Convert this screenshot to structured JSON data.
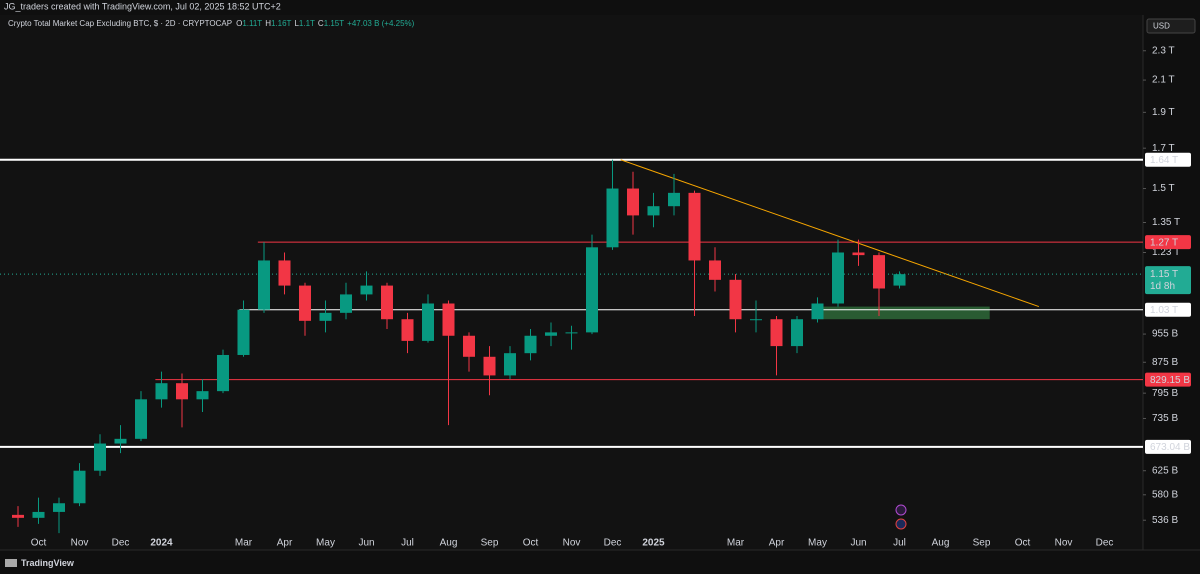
{
  "chart_data": {
    "type": "candlestick",
    "header": "JG_traders created with TradingView.com, Jul 02, 2025 18:52 UTC+2",
    "title": "Crypto Total Market Cap Excluding BTC, $ · 2D · CRYPTOCAP",
    "legend_ohlc": [
      {
        "key": "O",
        "text": "1.11T"
      },
      {
        "key": "H",
        "text": "1.16T"
      },
      {
        "key": "L",
        "text": "1.1T"
      },
      {
        "key": "C",
        "text": "1.15T"
      }
    ],
    "change": "+47.03 B (+4.25%)",
    "currency": "USD",
    "brand": "TradingView",
    "up_color": "#089981",
    "down_color": "#f23645",
    "log_scale": true,
    "categories": [
      null,
      "Oct",
      null,
      "Nov",
      null,
      "Dec",
      null,
      "2024",
      null,
      null,
      null,
      "Mar",
      null,
      "Apr",
      null,
      "May",
      null,
      "Jun",
      null,
      "Jul",
      null,
      "Aug",
      null,
      "Sep",
      null,
      "Oct",
      null,
      "Nov",
      null,
      "Dec",
      null,
      "2025",
      null,
      null,
      null,
      "Mar",
      null,
      "Apr",
      null,
      "May",
      null,
      "Jun",
      null,
      "Jul",
      null,
      "Aug",
      null,
      "Sep",
      null,
      "Oct",
      null,
      "Nov",
      null,
      "Dec"
    ],
    "open": [
      545,
      540,
      550,
      565,
      625,
      680,
      690,
      780,
      820,
      780,
      800,
      895,
      1030,
      1200,
      1110,
      995,
      1020,
      1080,
      1110,
      1000,
      935,
      1050,
      950,
      890,
      840,
      900,
      950,
      960,
      960,
      1250,
      1500,
      1380,
      1420,
      1480,
      1200,
      1130,
      1000,
      1000,
      920,
      1000,
      1050,
      1230,
      1220,
      1110,
      null,
      null,
      null,
      null,
      null,
      null,
      null,
      null,
      null,
      null
    ],
    "high": [
      560,
      575,
      575,
      640,
      700,
      720,
      800,
      850,
      845,
      830,
      910,
      1060,
      1270,
      1230,
      1120,
      1060,
      1120,
      1160,
      1120,
      1020,
      1080,
      1060,
      960,
      920,
      920,
      970,
      990,
      980,
      1300,
      1640,
      1580,
      1480,
      1570,
      1490,
      1250,
      1150,
      1060,
      1010,
      1010,
      1070,
      1280,
      1280,
      1230,
      1160,
      null,
      null,
      null,
      null,
      null,
      null,
      null,
      null,
      null,
      null
    ],
    "low": [
      525,
      530,
      515,
      560,
      615,
      660,
      685,
      760,
      715,
      750,
      795,
      890,
      1020,
      1080,
      950,
      960,
      1000,
      1060,
      970,
      900,
      930,
      720,
      850,
      790,
      830,
      880,
      920,
      910,
      955,
      1240,
      1300,
      1330,
      1380,
      1010,
      1090,
      960,
      960,
      840,
      900,
      990,
      1040,
      1180,
      1010,
      1100,
      null,
      null,
      null,
      null,
      null,
      null,
      null,
      null,
      null,
      null
    ],
    "close": [
      540,
      550,
      565,
      625,
      680,
      690,
      780,
      820,
      780,
      800,
      895,
      1030,
      1200,
      1110,
      995,
      1020,
      1080,
      1110,
      1000,
      935,
      1050,
      950,
      890,
      840,
      900,
      950,
      960,
      960,
      1250,
      1500,
      1380,
      1420,
      1480,
      1200,
      1130,
      1000,
      1000,
      920,
      1000,
      1050,
      1230,
      1220,
      1100,
      1150,
      null,
      null,
      null,
      null,
      null,
      null,
      null,
      null,
      null,
      null
    ],
    "ylim": [
      512,
      2546
    ],
    "yticks": [
      {
        "value": 2300,
        "label": "2.3 T"
      },
      {
        "value": 2100,
        "label": "2.1 T"
      },
      {
        "value": 1900,
        "label": "1.9 T"
      },
      {
        "value": 1700,
        "label": "1.7 T"
      },
      {
        "value": 1500,
        "label": "1.5 T"
      },
      {
        "value": 1350,
        "label": "1.35 T"
      },
      {
        "value": 1230,
        "label": "1.23 T"
      },
      {
        "value": 955,
        "label": "955 B"
      },
      {
        "value": 875,
        "label": "875 B"
      },
      {
        "value": 795,
        "label": "795 B"
      },
      {
        "value": 735,
        "label": "735 B"
      },
      {
        "value": 625,
        "label": "625 B"
      },
      {
        "value": 580,
        "label": "580 B"
      },
      {
        "value": 536,
        "label": "536 B"
      }
    ],
    "levels": [
      {
        "value": 1640,
        "label": "1.64 T",
        "color": "#ffffff",
        "width": 2,
        "start": -1
      },
      {
        "value": 1270,
        "label": "1.27 T",
        "color": "#f23645",
        "width": 1,
        "start": 11.7
      },
      {
        "value": 1030,
        "label": "1.03 T",
        "color": "#ffffff",
        "width": 1,
        "start": 10.8
      },
      {
        "value": 829.15,
        "label": "829.15 B",
        "color": "#f23645",
        "width": 1,
        "start": 6.7
      },
      {
        "value": 673.04,
        "label": "673.04 B",
        "color": "#ffffff",
        "width": 2,
        "start": -1
      }
    ],
    "last_price": {
      "value": 1150,
      "label": "1.15 T",
      "countdown": "1d 8h",
      "color": "#22ab94"
    },
    "trendline": {
      "color": "#f7a600",
      "points": [
        {
          "x": 29.4,
          "y": 1640
        },
        {
          "x": 49.8,
          "y": 1040
        }
      ]
    },
    "zone": {
      "color": "#2f6e3b",
      "x": [
        39.1,
        47.4
      ],
      "y": [
        1000,
        1040
      ]
    }
  }
}
